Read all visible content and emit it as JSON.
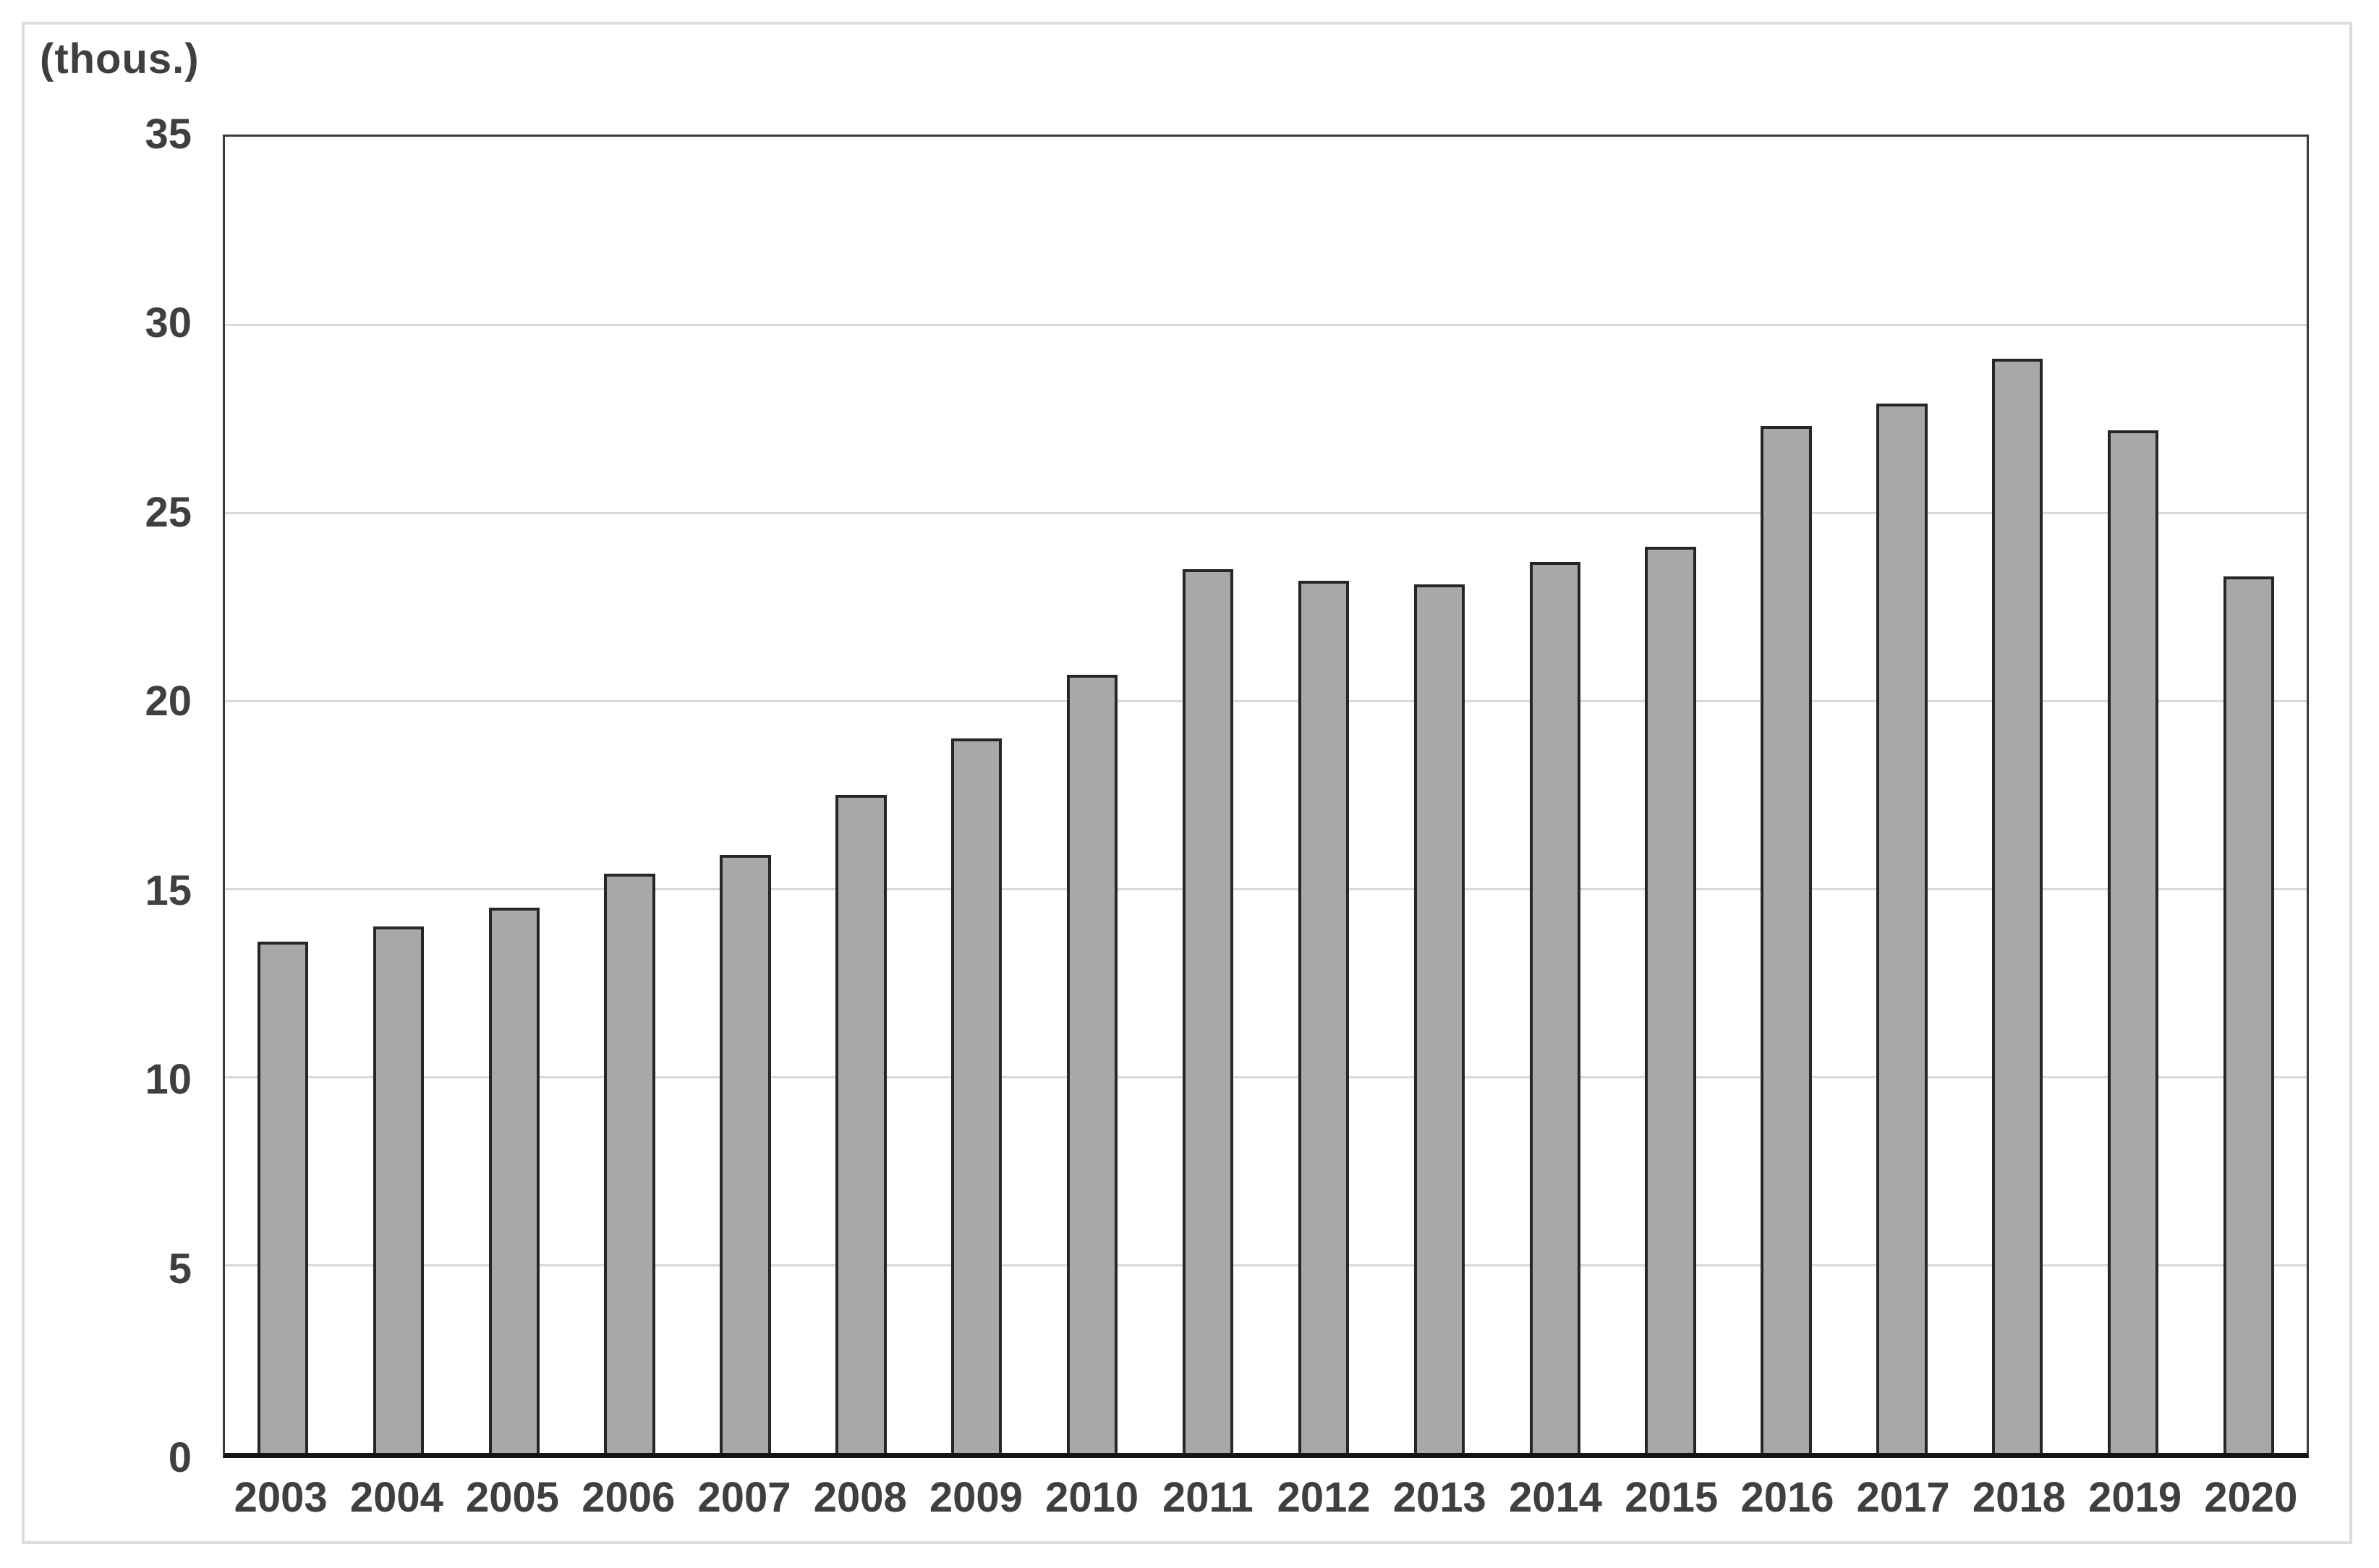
{
  "chart_data": {
    "type": "bar",
    "title": "",
    "unit_label": "(thous.)",
    "categories": [
      "2003",
      "2004",
      "2005",
      "2006",
      "2007",
      "2008",
      "2009",
      "2010",
      "2011",
      "2012",
      "2013",
      "2014",
      "2015",
      "2016",
      "2017",
      "2018",
      "2019",
      "2020"
    ],
    "values": [
      13.6,
      14.0,
      14.5,
      15.4,
      15.9,
      17.5,
      19.0,
      20.7,
      23.5,
      23.2,
      23.1,
      23.7,
      24.1,
      27.3,
      27.9,
      29.1,
      27.2,
      23.3
    ],
    "ylim": [
      0,
      35
    ],
    "yticks": [
      0,
      5,
      10,
      15,
      20,
      25,
      30,
      35
    ],
    "grid": true,
    "legend": "none",
    "colors": {
      "bar_fill": "#a8a8a8",
      "bar_border": "#262626",
      "plot_border": "#3a3a3a",
      "baseline": "#141414",
      "gridline": "#d9d9d9",
      "tick_text": "#3f3f3f",
      "outer_frame": "#dcdcdc",
      "background": "#ffffff"
    }
  }
}
